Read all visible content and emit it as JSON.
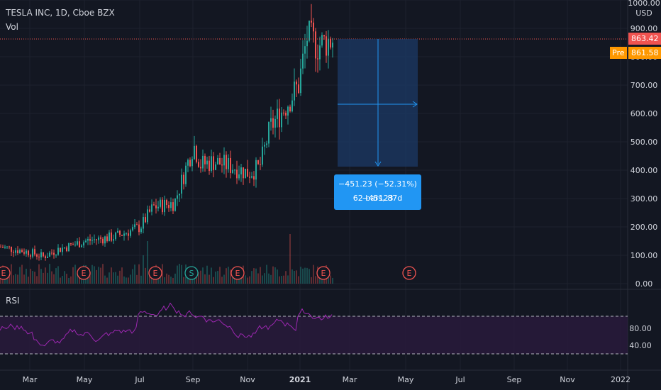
{
  "legend": {
    "title": "TESLA INC, 1D, Cboe BZX",
    "volume": "Vol",
    "rsi": "RSI"
  },
  "price_axis": {
    "currency": "USD",
    "ticks": [
      "1000.00",
      "900.00",
      "800.00",
      "700.00",
      "600.00",
      "500.00",
      "400.00",
      "300.00",
      "200.00",
      "100.00",
      "0.00"
    ]
  },
  "rsi_axis": {
    "ticks": [
      "80.00",
      "40.00"
    ]
  },
  "time_axis": {
    "ticks": [
      "Mar",
      "May",
      "Jul",
      "Sep",
      "Nov",
      "2021",
      "Mar",
      "May",
      "Jul",
      "Sep",
      "Nov",
      "2022"
    ]
  },
  "badges": {
    "last_price": "863.42",
    "pre_label": "Pre",
    "pre_price": "861.58"
  },
  "measure_tool": {
    "line1": "−451.23 (−52.31%) −45123",
    "line2": "62 bars, 87d"
  },
  "events": [
    {
      "letter": "E",
      "kind": "earnings"
    },
    {
      "letter": "E",
      "kind": "earnings"
    },
    {
      "letter": "E",
      "kind": "earnings"
    },
    {
      "letter": "S",
      "kind": "split"
    },
    {
      "letter": "E",
      "kind": "earnings"
    },
    {
      "letter": "E",
      "kind": "earnings"
    },
    {
      "letter": "E",
      "kind": "earnings"
    }
  ],
  "colors": {
    "background": "#131722",
    "grid": "#1e222d",
    "up": "#26a69a",
    "down": "#ef5350",
    "rsi_line": "#9c27b0",
    "rsi_band": "#2a1a3d",
    "measure_fill": "#1c3a66",
    "measure_line": "#2196f3",
    "price_line": "#ef5350",
    "pre_badge": "#ff9800"
  },
  "chart_data": {
    "type": "candlestick",
    "symbol": "TESLA INC",
    "interval": "1D",
    "exchange": "Cboe BZX",
    "ylim": [
      0,
      1000
    ],
    "rsi_levels": [
      70,
      30
    ],
    "last_price": 863.42,
    "pre_market_price": 861.58,
    "monthly_closes": [
      {
        "month": "2020-01",
        "close": 130
      },
      {
        "month": "2020-02",
        "close": 135
      },
      {
        "month": "2020-03",
        "close": 105
      },
      {
        "month": "2020-04",
        "close": 155
      },
      {
        "month": "2020-05",
        "close": 165
      },
      {
        "month": "2020-06",
        "close": 215
      },
      {
        "month": "2020-07",
        "close": 285
      },
      {
        "month": "2020-08",
        "close": 480
      },
      {
        "month": "2020-09",
        "close": 430
      },
      {
        "month": "2020-10",
        "close": 390
      },
      {
        "month": "2020-11",
        "close": 570
      },
      {
        "month": "2020-12",
        "close": 705
      },
      {
        "month": "2021-01",
        "close": 795
      },
      {
        "month": "2021-02",
        "close": 863
      }
    ],
    "measurement": {
      "change": -451.23,
      "change_percent": -52.31,
      "ticks": -45123,
      "bars": 62,
      "days": 87
    }
  }
}
